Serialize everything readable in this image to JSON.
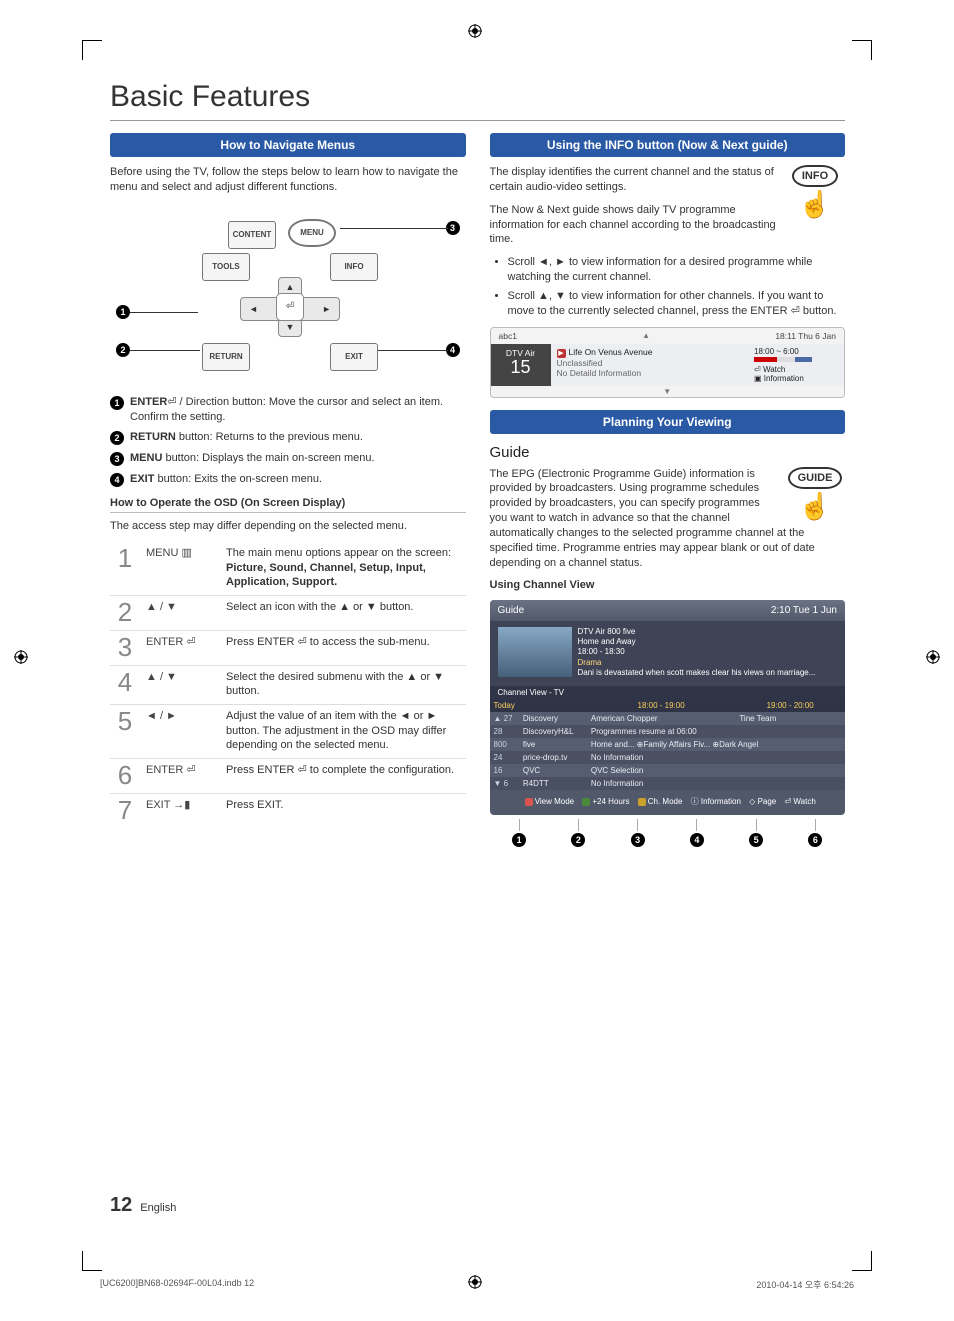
{
  "page": {
    "title": "Basic Features",
    "number": "12",
    "lang": "English"
  },
  "left": {
    "sec1_header": "How to Navigate Menus",
    "sec1_intro": "Before using the TV, follow the steps below to learn how to navigate the menu and select and adjust different functions.",
    "remote": {
      "content": "CONTENT",
      "menu": "MENU",
      "tools": "TOOLS",
      "info": "INFO",
      "return": "RETURN",
      "exit": "EXIT"
    },
    "callouts": {
      "c1_b": "ENTER",
      "c1_t": " / Direction button: Move the cursor and select an item. Confirm the setting.",
      "c2_b": "RETURN",
      "c2_t": " button: Returns to the previous menu.",
      "c3_b": "MENU",
      "c3_t": " button: Displays the main on-screen menu.",
      "c4_b": "EXIT",
      "c4_t": " button: Exits the on-screen menu."
    },
    "osd_heading": "How to Operate the OSD (On Screen Display)",
    "osd_note": "The access step may differ depending on the selected menu.",
    "osd": [
      {
        "n": "1",
        "sym": "MENU ▥",
        "txt1": "The main menu options appear on the screen:",
        "txt2": "Picture, Sound, Channel, Setup, Input, Application, Support."
      },
      {
        "n": "2",
        "sym": "▲ / ▼",
        "txt1": "Select an icon with the ▲ or ▼ button."
      },
      {
        "n": "3",
        "sym": "ENTER ⏎",
        "txt1": "Press ENTER ⏎ to access the sub-menu."
      },
      {
        "n": "4",
        "sym": "▲ / ▼",
        "txt1": "Select the desired submenu with the ▲ or ▼ button."
      },
      {
        "n": "5",
        "sym": "◄ / ►",
        "txt1": "Adjust the value of an item with the ◄ or ► button. The adjustment in the OSD may differ depending on the selected menu."
      },
      {
        "n": "6",
        "sym": "ENTER ⏎",
        "txt1": "Press ENTER ⏎ to complete the configuration."
      },
      {
        "n": "7",
        "sym": "EXIT →▮",
        "txt1": "Press EXIT."
      }
    ]
  },
  "right": {
    "sec1_header": "Using the INFO button (Now & Next guide)",
    "info_label": "INFO",
    "sec1_p1": "The display identifies the current channel and the status of certain audio-video settings.",
    "sec1_p2": "The Now & Next guide shows daily TV programme information for each channel according to the broadcasting time.",
    "sec1_b1": "Scroll ◄, ► to view information for a desired programme while watching the current channel.",
    "sec1_b2": "Scroll ▲, ▼ to view information for other channels. If you want to move to the currently selected channel, press the ENTER ⏎ button.",
    "epg": {
      "ch_name": "abc1",
      "datetime": "18:11 Thu 6 Jan",
      "ch_type": "DTV Air",
      "ch_num": "15",
      "prog_title": "Life On Venus Avenue",
      "rating": "Unclassified",
      "detail": "No Detaild Information",
      "timespan": "18:00 ~ 6:00",
      "watch": "Watch",
      "info": "Information"
    },
    "sec2_header": "Planning Your Viewing",
    "guide_title": "Guide",
    "guide_label": "GUIDE",
    "guide_body": "The EPG (Electronic Programme Guide) information is provided by broadcasters. Using programme schedules provided by broadcasters, you can specify programmes you want to watch in advance so that the channel automatically changes to the selected programme channel at the specified time. Programme entries may appear blank or out of date depending on a channel status.",
    "ucv_heading": "Using Channel View",
    "widget": {
      "title": "Guide",
      "time": "2:10 Tue 1 Jun",
      "info_ch": "DTV Air 800 five",
      "info_prog": "Home and Away",
      "info_time": "18:00 - 18:30",
      "info_genre": "Drama",
      "info_desc": "Dani is devastated when scott makes clear his views on marriage...",
      "cv_label": "Channel View - TV",
      "today": "Today",
      "slot1": "18:00 - 19:00",
      "slot2": "19:00 - 20:00",
      "rows": [
        {
          "n": "▲ 27",
          "name": "Discovery",
          "p1": "American Chopper",
          "p2": "Tine Team"
        },
        {
          "n": "28",
          "name": "DiscoveryH&L",
          "p1": "Programmes resume at 06:00",
          "p2": ""
        },
        {
          "n": "800",
          "name": "five",
          "p1": "Home and...   ⊕Family Affairs   Fiv...   ⊕Dark Angel",
          "p2": ""
        },
        {
          "n": "24",
          "name": "price-drop.tv",
          "p1": "No Information",
          "p2": ""
        },
        {
          "n": "16",
          "name": "QVC",
          "p1": "QVC Selection",
          "p2": ""
        },
        {
          "n": "▼ 6",
          "name": "R4DTT",
          "p1": "No Information",
          "p2": ""
        }
      ],
      "legend": {
        "l1": "View Mode",
        "c1": "#d9534f",
        "l2": "+24 Hours",
        "c2": "#4a8a3a",
        "l3": "Ch. Mode",
        "c3": "#c9a227",
        "l4": "Information",
        "c4": "#555",
        "l5": "Page",
        "l6": "Watch"
      }
    }
  },
  "print": {
    "left": "[UC6200]BN68-02694F-00L04.indb   12",
    "right": "2010-04-14   오후 6:54:26"
  }
}
